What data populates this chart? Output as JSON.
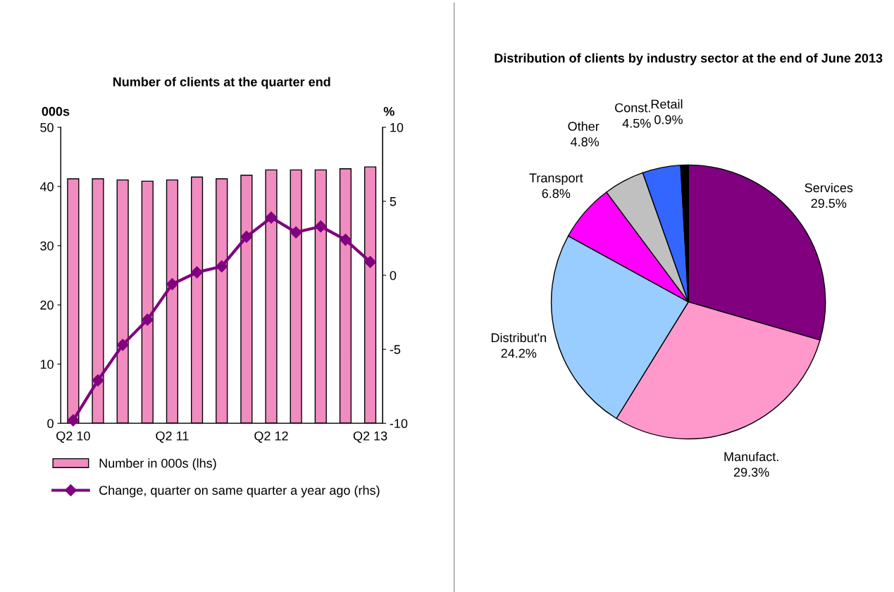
{
  "chart_data": [
    {
      "type": "bar",
      "title": "Number of clients at the quarter end",
      "ylabel": "000s",
      "y2label": "%",
      "categories": [
        "Q2 10",
        null,
        null,
        null,
        "Q2 11",
        null,
        null,
        null,
        "Q2 12",
        null,
        null,
        null,
        "Q2 13"
      ],
      "series": [
        {
          "name": "Number in 000s (lhs)",
          "type": "bar",
          "color": "#f08cbf",
          "values": [
            41.3,
            41.3,
            41.1,
            40.9,
            41.1,
            41.6,
            41.3,
            41.9,
            42.8,
            42.8,
            42.8,
            43.0,
            43.3
          ]
        },
        {
          "name": "Change, quarter on same quarter a year ago (rhs)",
          "type": "line",
          "axis": "y2",
          "color": "#800080",
          "marker": "diamond",
          "values": [
            -9.8,
            -7.1,
            -4.7,
            -3.0,
            -0.6,
            0.2,
            0.6,
            2.6,
            3.9,
            2.9,
            3.3,
            2.4,
            0.9
          ]
        }
      ],
      "ylim": [
        0,
        50
      ],
      "yticks": [
        0,
        10,
        20,
        30,
        40,
        50
      ],
      "y2lim": [
        -10,
        10
      ],
      "y2ticks": [
        -10,
        -5,
        0,
        5,
        10
      ],
      "grid": false,
      "legend": "bottom"
    },
    {
      "type": "pie",
      "title": "Distribution of clients by industry sector at the end of June 2013",
      "categories": [
        "Services",
        "Manufact.",
        "Distribut'n",
        "Transport",
        "Other",
        "Const.",
        "Retail"
      ],
      "values": [
        29.5,
        29.3,
        24.2,
        6.8,
        4.8,
        4.5,
        0.9
      ],
      "value_labels": [
        "29.5%",
        "29.3%",
        "24.2%",
        "6.8%",
        "4.8%",
        "4.5%",
        "0.9%"
      ],
      "colors": [
        "#800080",
        "#ff99cc",
        "#99ccff",
        "#ff00ff",
        "#c0c0c0",
        "#3366ff",
        "#000000"
      ]
    }
  ]
}
